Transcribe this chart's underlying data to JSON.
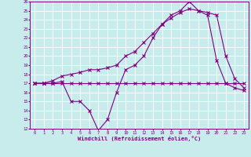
{
  "title": "",
  "xlabel": "Windchill (Refroidissement éolien,°C)",
  "bg_color": "#c8ecec",
  "line_color": "#800080",
  "grid_color": "#ffffff",
  "xlim": [
    -0.5,
    23.5
  ],
  "ylim": [
    12,
    26
  ],
  "xticks": [
    0,
    1,
    2,
    3,
    4,
    5,
    6,
    7,
    8,
    9,
    10,
    11,
    12,
    13,
    14,
    15,
    16,
    17,
    18,
    19,
    20,
    21,
    22,
    23
  ],
  "yticks": [
    12,
    13,
    14,
    15,
    16,
    17,
    18,
    19,
    20,
    21,
    22,
    23,
    24,
    25,
    26
  ],
  "series1_x": [
    0,
    1,
    2,
    3,
    4,
    5,
    6,
    7,
    8,
    9,
    10,
    11,
    12,
    13,
    14,
    15,
    16,
    17,
    18,
    19,
    20,
    21,
    22,
    23
  ],
  "series1_y": [
    17,
    17,
    17,
    17.2,
    15,
    15,
    14,
    11.8,
    13,
    16,
    18.5,
    19,
    20,
    22,
    23.5,
    24.5,
    25,
    26,
    25,
    24.5,
    19.5,
    17,
    16.5,
    16.2
  ],
  "series2_x": [
    0,
    1,
    2,
    3,
    4,
    5,
    6,
    7,
    8,
    9,
    10,
    11,
    12,
    13,
    14,
    15,
    16,
    17,
    18,
    19,
    20,
    21,
    22,
    23
  ],
  "series2_y": [
    17,
    17,
    17,
    17,
    17,
    17,
    17,
    17,
    17,
    17,
    17,
    17,
    17,
    17,
    17,
    17,
    17,
    17,
    17,
    17,
    17,
    17,
    17,
    17
  ],
  "series3_x": [
    0,
    1,
    2,
    3,
    4,
    5,
    6,
    7,
    8,
    9,
    10,
    11,
    12,
    13,
    14,
    15,
    16,
    17,
    18,
    19,
    20,
    21,
    22,
    23
  ],
  "series3_y": [
    17,
    17,
    17.3,
    17.8,
    18,
    18.2,
    18.5,
    18.5,
    18.7,
    19,
    20,
    20.5,
    21.5,
    22.5,
    23.5,
    24.2,
    24.8,
    25.2,
    25,
    24.8,
    24.5,
    20,
    17.5,
    16.5
  ]
}
